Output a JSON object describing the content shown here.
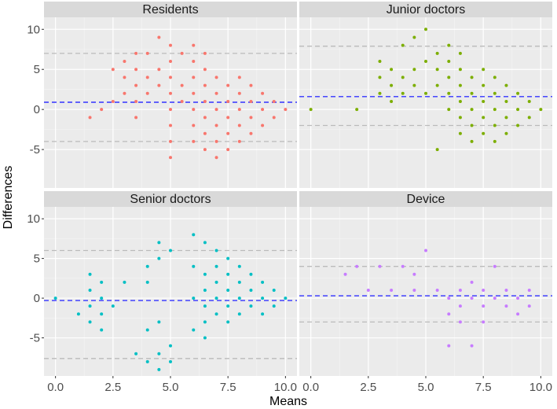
{
  "chart_data": {
    "type": "scatter",
    "facet_layout": "2x2 grid",
    "xlabel": "Means",
    "ylabel": "Differences",
    "xlim": [
      -0.5,
      10.5
    ],
    "ylim": [
      -9.8,
      11.5
    ],
    "x_ticks": [
      0,
      2.5,
      5,
      7.5,
      10
    ],
    "x_tick_labels": [
      "0.0",
      "2.5",
      "5.0",
      "7.5",
      "10.0"
    ],
    "y_ticks": [
      -5,
      0,
      5,
      10
    ],
    "y_tick_labels": [
      "-5",
      "0",
      "5",
      "10"
    ],
    "grid": true,
    "reference_line_color": "#3333ff",
    "limit_line_color": "#bbbbbb",
    "panels": [
      {
        "title": "Residents",
        "color": "#F8766D",
        "mean_difference": 0.9,
        "limits_of_agreement": [
          -4.0,
          7.0
        ],
        "points": [
          [
            1.5,
            -1
          ],
          [
            2,
            0
          ],
          [
            2.5,
            1
          ],
          [
            2.5,
            5
          ],
          [
            3,
            2
          ],
          [
            3,
            4
          ],
          [
            3,
            6
          ],
          [
            3.5,
            -1
          ],
          [
            3.5,
            1
          ],
          [
            3.5,
            3
          ],
          [
            3.5,
            5
          ],
          [
            3.5,
            7
          ],
          [
            4,
            2
          ],
          [
            4,
            4
          ],
          [
            4,
            7
          ],
          [
            4.5,
            3
          ],
          [
            4.5,
            5
          ],
          [
            4.5,
            9
          ],
          [
            5,
            -2
          ],
          [
            5,
            -4
          ],
          [
            5,
            -6
          ],
          [
            5,
            0
          ],
          [
            5,
            2
          ],
          [
            5,
            4
          ],
          [
            5,
            6
          ],
          [
            5,
            8
          ],
          [
            5.5,
            1
          ],
          [
            5.5,
            3
          ],
          [
            5.5,
            7
          ],
          [
            6,
            -2
          ],
          [
            6,
            -4
          ],
          [
            6,
            0
          ],
          [
            6,
            2
          ],
          [
            6,
            4
          ],
          [
            6,
            6
          ],
          [
            6,
            8
          ],
          [
            6.5,
            -1
          ],
          [
            6.5,
            -3
          ],
          [
            6.5,
            -5
          ],
          [
            6.5,
            1
          ],
          [
            6.5,
            3
          ],
          [
            6.5,
            5
          ],
          [
            6.5,
            7
          ],
          [
            7,
            -2
          ],
          [
            7,
            -4
          ],
          [
            7,
            -6
          ],
          [
            7,
            0
          ],
          [
            7,
            2
          ],
          [
            7,
            4
          ],
          [
            7.5,
            -1
          ],
          [
            7.5,
            -3
          ],
          [
            7.5,
            -5
          ],
          [
            7.5,
            1
          ],
          [
            7.5,
            3
          ],
          [
            8,
            -2
          ],
          [
            8,
            -4
          ],
          [
            8,
            0
          ],
          [
            8,
            2
          ],
          [
            8,
            4
          ],
          [
            8.5,
            -1
          ],
          [
            8.5,
            -3
          ],
          [
            8.5,
            1
          ],
          [
            8.5,
            3
          ],
          [
            9,
            -2
          ],
          [
            9,
            0
          ],
          [
            9,
            2
          ],
          [
            9.5,
            -1
          ],
          [
            9.5,
            1
          ],
          [
            10,
            0
          ]
        ]
      },
      {
        "title": "Junior doctors",
        "color": "#7CAE00",
        "mean_difference": 1.6,
        "limits_of_agreement": [
          -2.0,
          7.9
        ],
        "points": [
          [
            0,
            0
          ],
          [
            2,
            0
          ],
          [
            3,
            2
          ],
          [
            3,
            4
          ],
          [
            3,
            6
          ],
          [
            3.5,
            1
          ],
          [
            3.5,
            3
          ],
          [
            3.5,
            5
          ],
          [
            4,
            2
          ],
          [
            4,
            4
          ],
          [
            4,
            8
          ],
          [
            4.5,
            3
          ],
          [
            4.5,
            5
          ],
          [
            4.5,
            9
          ],
          [
            5,
            2
          ],
          [
            5,
            6
          ],
          [
            5,
            10
          ],
          [
            5.5,
            -5
          ],
          [
            5.5,
            3
          ],
          [
            5.5,
            5
          ],
          [
            5.5,
            7
          ],
          [
            6,
            0
          ],
          [
            6,
            2
          ],
          [
            6,
            4
          ],
          [
            6,
            6
          ],
          [
            6,
            8
          ],
          [
            6.5,
            -1
          ],
          [
            6.5,
            -3
          ],
          [
            6.5,
            1
          ],
          [
            6.5,
            3
          ],
          [
            6.5,
            5
          ],
          [
            6.5,
            7
          ],
          [
            7,
            -2
          ],
          [
            7,
            -4
          ],
          [
            7,
            0
          ],
          [
            7,
            2
          ],
          [
            7,
            4
          ],
          [
            7.5,
            -1
          ],
          [
            7.5,
            -3
          ],
          [
            7.5,
            1
          ],
          [
            7.5,
            3
          ],
          [
            7.5,
            5
          ],
          [
            8,
            -2
          ],
          [
            8,
            -4
          ],
          [
            8,
            0
          ],
          [
            8,
            2
          ],
          [
            8,
            4
          ],
          [
            8.5,
            -1
          ],
          [
            8.5,
            -3
          ],
          [
            8.5,
            1
          ],
          [
            8.5,
            3
          ],
          [
            9,
            -2
          ],
          [
            9,
            0
          ],
          [
            9,
            2
          ],
          [
            9.5,
            -1
          ],
          [
            9.5,
            1
          ],
          [
            10,
            0
          ]
        ]
      },
      {
        "title": "Senior doctors",
        "color": "#00BFC4",
        "mean_difference": -0.3,
        "limits_of_agreement": [
          -7.6,
          6.0
        ],
        "points": [
          [
            0,
            0
          ],
          [
            1,
            -2
          ],
          [
            1.5,
            -1
          ],
          [
            1.5,
            -3
          ],
          [
            1.5,
            1
          ],
          [
            1.5,
            3
          ],
          [
            2,
            -2
          ],
          [
            2,
            -4
          ],
          [
            2,
            0
          ],
          [
            2,
            2
          ],
          [
            2.5,
            -1
          ],
          [
            3,
            2
          ],
          [
            3.5,
            -7
          ],
          [
            4,
            -4
          ],
          [
            4,
            -8
          ],
          [
            4,
            2
          ],
          [
            4,
            4
          ],
          [
            4.5,
            -3
          ],
          [
            4.5,
            -7
          ],
          [
            4.5,
            -9
          ],
          [
            4.5,
            5
          ],
          [
            4.5,
            7
          ],
          [
            5,
            -6
          ],
          [
            5,
            -8
          ],
          [
            5,
            6
          ],
          [
            6,
            -4
          ],
          [
            6,
            0
          ],
          [
            6,
            4
          ],
          [
            6,
            8
          ],
          [
            6.5,
            -1
          ],
          [
            6.5,
            -3
          ],
          [
            6.5,
            -5
          ],
          [
            6.5,
            1
          ],
          [
            6.5,
            3
          ],
          [
            6.5,
            7
          ],
          [
            7,
            -2
          ],
          [
            7,
            0
          ],
          [
            7,
            2
          ],
          [
            7,
            4
          ],
          [
            7,
            6
          ],
          [
            7.5,
            -1
          ],
          [
            7.5,
            -3
          ],
          [
            7.5,
            1
          ],
          [
            7.5,
            3
          ],
          [
            7.5,
            5
          ],
          [
            8,
            -2
          ],
          [
            8,
            0
          ],
          [
            8,
            2
          ],
          [
            8,
            4
          ],
          [
            8.5,
            -1
          ],
          [
            8.5,
            1
          ],
          [
            8.5,
            3
          ],
          [
            9,
            -2
          ],
          [
            9,
            0
          ],
          [
            9,
            2
          ],
          [
            9.5,
            -1
          ],
          [
            9.5,
            1
          ],
          [
            10,
            0
          ]
        ]
      },
      {
        "title": "Device",
        "color": "#C77CFF",
        "mean_difference": 0.3,
        "limits_of_agreement": [
          -3.0,
          4.0
        ],
        "points": [
          [
            1.5,
            3
          ],
          [
            2,
            4
          ],
          [
            2.5,
            1
          ],
          [
            3,
            4
          ],
          [
            3.5,
            1
          ],
          [
            4,
            4
          ],
          [
            4.5,
            1
          ],
          [
            4.5,
            3
          ],
          [
            5,
            6
          ],
          [
            5.5,
            1
          ],
          [
            6,
            -2
          ],
          [
            6,
            -6
          ],
          [
            6,
            0
          ],
          [
            6.5,
            -1
          ],
          [
            6.5,
            -3
          ],
          [
            6.5,
            1
          ],
          [
            7,
            -6
          ],
          [
            7,
            0
          ],
          [
            7,
            2
          ],
          [
            7.5,
            -1
          ],
          [
            7.5,
            -3
          ],
          [
            7.5,
            1
          ],
          [
            8,
            0
          ],
          [
            8,
            4
          ],
          [
            8.5,
            -1
          ],
          [
            8.5,
            1
          ],
          [
            9,
            -2
          ],
          [
            9,
            0
          ],
          [
            9.5,
            -1
          ],
          [
            9.5,
            1
          ]
        ]
      }
    ]
  }
}
